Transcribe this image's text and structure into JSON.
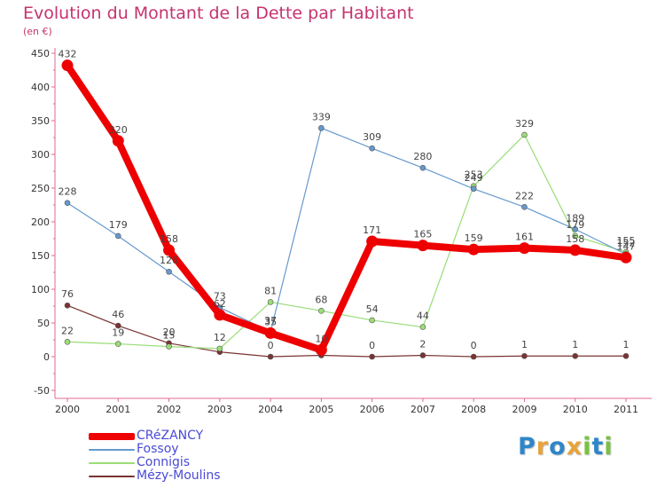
{
  "chart_data": {
    "type": "line",
    "title": "Evolution du Montant de la Dette par Habitant",
    "subtitle": "(en €)",
    "xlabel": "",
    "ylabel": "",
    "categories": [
      "2000",
      "2001",
      "2002",
      "2003",
      "2004",
      "2005",
      "2006",
      "2007",
      "2008",
      "2009",
      "2010",
      "2011"
    ],
    "ylim": [
      -50,
      450
    ],
    "yticks": [
      -50,
      0,
      50,
      100,
      150,
      200,
      250,
      300,
      350,
      400,
      450
    ],
    "grid": false,
    "legend_position": "bottom-left",
    "series": [
      {
        "name": "CRéZANCY",
        "color": "#ee0000",
        "values": [
          432,
          320,
          158,
          62,
          35,
          10,
          171,
          165,
          159,
          161,
          158,
          147
        ],
        "labels": [
          "432",
          "320",
          "158",
          "62",
          "35",
          "10",
          "171",
          "165",
          "159",
          "161",
          "158",
          "147"
        ]
      },
      {
        "name": "Fossoy",
        "color": "#6699cc",
        "values": [
          228,
          179,
          126,
          73,
          37,
          339,
          309,
          280,
          249,
          222,
          189,
          152
        ],
        "labels": [
          "228",
          "179",
          "126",
          "73",
          "37",
          "339",
          "309",
          "280",
          "249",
          "222",
          "189",
          "152"
        ]
      },
      {
        "name": "Connigis",
        "color": "#99dd77",
        "values": [
          22,
          19,
          15,
          12,
          81,
          68,
          54,
          44,
          253,
          329,
          179,
          155
        ],
        "labels": [
          "22",
          "19",
          "15",
          "12",
          "81",
          "68",
          "54",
          "44",
          "253",
          "329",
          "179",
          "155"
        ]
      },
      {
        "name": "Mézy-Moulins",
        "color": "#7a3333",
        "values": [
          76,
          46,
          20,
          7,
          0,
          2,
          0,
          2,
          0,
          1,
          1,
          1
        ],
        "labels": [
          "76",
          "46",
          "20",
          "",
          "0",
          "",
          "0",
          "2",
          "0",
          "1",
          "1",
          "1"
        ]
      }
    ]
  },
  "brand": {
    "letters": [
      "P",
      "r",
      "o",
      "x",
      "i",
      "t",
      "i"
    ],
    "colors": [
      "#2e86c8",
      "#e8a33a",
      "#2e86c8",
      "#e8a33a",
      "#7ac143",
      "#2e86c8",
      "#7ac143"
    ]
  }
}
